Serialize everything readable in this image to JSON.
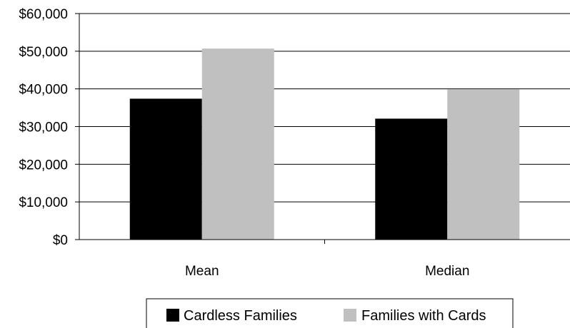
{
  "chart_data": {
    "type": "bar",
    "categories": [
      "Mean",
      "Median"
    ],
    "series": [
      {
        "name": "Cardless Families",
        "values": [
          37400,
          32100
        ],
        "color": "#000000"
      },
      {
        "name": "Families with Cards",
        "values": [
          50700,
          39900
        ],
        "color": "#c0c0c0"
      }
    ],
    "ylim": [
      0,
      60000
    ],
    "yticks": [
      0,
      10000,
      20000,
      30000,
      40000,
      50000,
      60000
    ],
    "ytick_labels": [
      "$0",
      "$10,000",
      "$20,000",
      "$30,000",
      "$40,000",
      "$50,000",
      "$60,000"
    ],
    "grid": true,
    "legend_position": "bottom",
    "title": "",
    "xlabel": "",
    "ylabel": ""
  }
}
